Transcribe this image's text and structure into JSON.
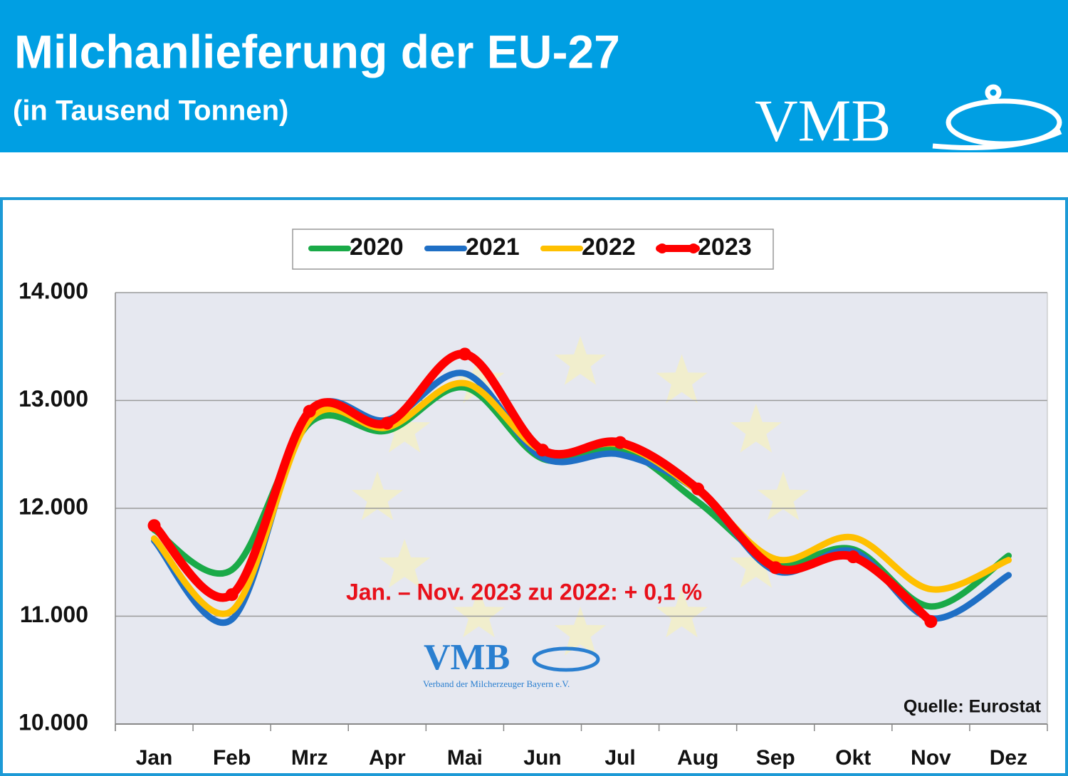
{
  "header": {
    "title": "Milchanlieferung der EU-27",
    "subtitle": "(in Tausend Tonnen)",
    "logo": "VMB"
  },
  "chart_data": {
    "type": "line",
    "categories": [
      "Jan",
      "Feb",
      "Mrz",
      "Apr",
      "Mai",
      "Jun",
      "Jul",
      "Aug",
      "Sep",
      "Okt",
      "Nov",
      "Dez"
    ],
    "series": [
      {
        "name": "2020",
        "color": "#1aaa48",
        "values": [
          11800,
          11430,
          12790,
          12720,
          13120,
          12460,
          12550,
          12060,
          11500,
          11620,
          11090,
          11560
        ]
      },
      {
        "name": "2021",
        "color": "#1f6fc5",
        "values": [
          11700,
          10970,
          12880,
          12820,
          13250,
          12470,
          12500,
          12160,
          11420,
          11600,
          10980,
          11380
        ]
      },
      {
        "name": "2022",
        "color": "#ffc000",
        "values": [
          11720,
          11050,
          12820,
          12750,
          13160,
          12530,
          12590,
          12160,
          11530,
          11730,
          11250,
          11520
        ]
      },
      {
        "name": "2023",
        "color": "#ff0000",
        "values": [
          11840,
          11200,
          12900,
          12790,
          13430,
          12540,
          12610,
          12180,
          11450,
          11550,
          10950,
          null
        ],
        "markers": true
      }
    ],
    "ylim": [
      10000,
      14000
    ],
    "yticks": [
      {
        "value": 10000,
        "label": "10.000"
      },
      {
        "value": 11000,
        "label": "11.000"
      },
      {
        "value": 12000,
        "label": "12.000"
      },
      {
        "value": 13000,
        "label": "13.000"
      },
      {
        "value": 14000,
        "label": "14.000"
      }
    ],
    "grid": true,
    "legend": "top",
    "annotation": "Jan. – Nov. 2023 zu 2022: + 0,1 %",
    "source": "Quelle: Eurostat",
    "watermark": {
      "logo": "VMB",
      "tagline": "Verband der Milcherzeuger Bayern e.V."
    }
  }
}
